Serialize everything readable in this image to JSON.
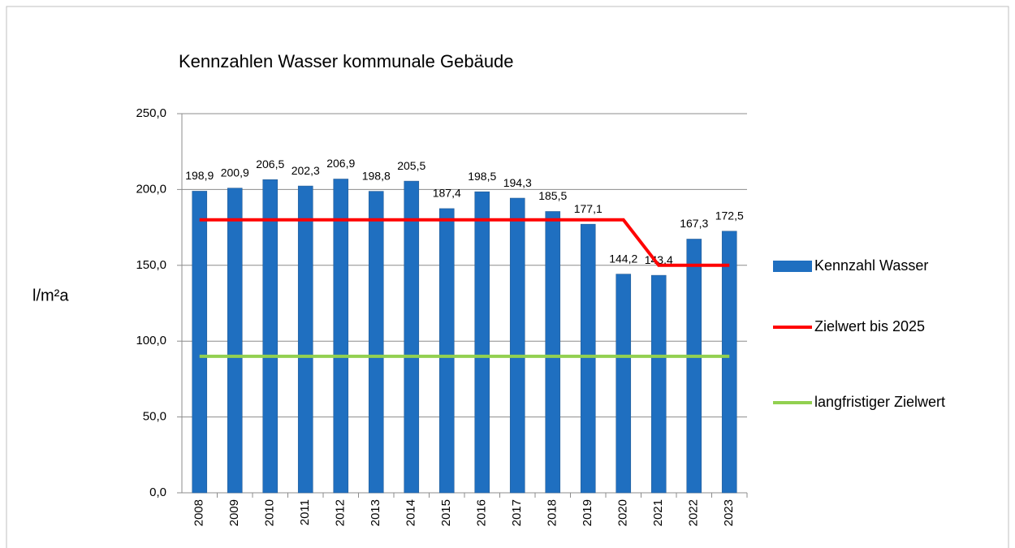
{
  "chart_data": {
    "type": "bar",
    "title": "Kennzahlen Wasser kommunale Gebäude",
    "y_label": "l/m²a",
    "categories": [
      "2008",
      "2009",
      "2010",
      "2011",
      "2012",
      "2013",
      "2014",
      "2015",
      "2016",
      "2017",
      "2018",
      "2019",
      "2020",
      "2021",
      "2022",
      "2023"
    ],
    "series": [
      {
        "name": "Kennzahl Wasser",
        "type": "bar",
        "color": "#1f6fc0",
        "values": [
          198.9,
          200.9,
          206.5,
          202.3,
          206.9,
          198.8,
          205.5,
          187.4,
          198.5,
          194.3,
          185.5,
          177.1,
          144.2,
          143.4,
          167.3,
          172.5
        ],
        "value_labels": [
          "198,9",
          "200,9",
          "206,5",
          "202,3",
          "206,9",
          "198,8",
          "205,5",
          "187,4",
          "198,5",
          "194,3",
          "185,5",
          "177,1",
          "144,2",
          "143,4",
          "167,3",
          "172,5"
        ]
      },
      {
        "name": "Zielwert bis 2025",
        "type": "line",
        "color": "#ff0000",
        "values": [
          180,
          180,
          180,
          180,
          180,
          180,
          180,
          180,
          180,
          180,
          180,
          180,
          180,
          150,
          150,
          150
        ]
      },
      {
        "name": "langfristiger Zielwert",
        "type": "line",
        "color": "#92d050",
        "values": [
          90,
          90,
          90,
          90,
          90,
          90,
          90,
          90,
          90,
          90,
          90,
          90,
          90,
          90,
          90,
          90
        ]
      }
    ],
    "ylim": [
      0,
      250
    ],
    "yticks": [
      {
        "value": 0,
        "label": "0,0"
      },
      {
        "value": 50,
        "label": "50,0"
      },
      {
        "value": 100,
        "label": "100,0"
      },
      {
        "value": 150,
        "label": "150,0"
      },
      {
        "value": 200,
        "label": "200,0"
      },
      {
        "value": 250,
        "label": "250,0"
      }
    ],
    "grid": true,
    "legend": "right"
  }
}
